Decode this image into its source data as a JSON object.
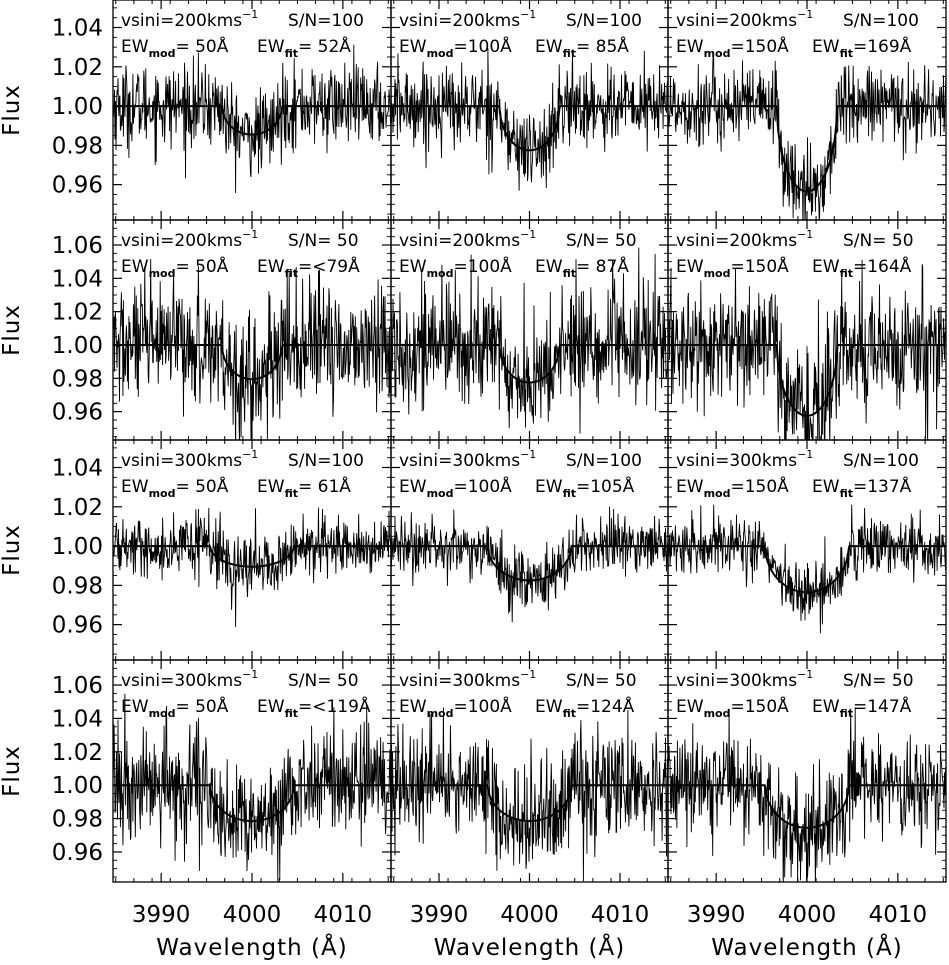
{
  "chart_data": {
    "type": "line",
    "rows": 4,
    "cols": 3,
    "xlabel": "Wavelength (Å)",
    "ylabel": "Flux",
    "xlim": [
      3984.7,
      4015.3
    ],
    "x_ticks": [
      3990,
      4000,
      4010
    ],
    "x_tick_labels": [
      "3990",
      "4000",
      "4010"
    ],
    "line_center": 4000,
    "panels": [
      {
        "vsini": "vsini=200kms",
        "sn": "S/N=100",
        "ew_mod_value": "= 50Å",
        "ew_fit_value": "= 52Å",
        "ylim": [
          0.942,
          1.054
        ],
        "yticks": [
          "1.04",
          "1.02",
          "1.00",
          "0.98",
          "0.96"
        ],
        "ytick_values": [
          1.04,
          1.02,
          1.0,
          0.98,
          0.96
        ],
        "model_depth": 0.0145,
        "half_width": 3.3,
        "noise_sigma": 0.0105
      },
      {
        "vsini": "vsini=200kms",
        "sn": "S/N=100",
        "ew_mod_value": "=100Å",
        "ew_fit_value": "= 85Å",
        "ylim": [
          0.942,
          1.054
        ],
        "yticks": [],
        "ytick_values": [],
        "model_depth": 0.0225,
        "half_width": 3.3,
        "noise_sigma": 0.0105
      },
      {
        "vsini": "vsini=200kms",
        "sn": "S/N=100",
        "ew_mod_value": "=150Å",
        "ew_fit_value": "=169Å",
        "ylim": [
          0.942,
          1.054
        ],
        "yticks": [],
        "ytick_values": [],
        "model_depth": 0.0435,
        "half_width": 3.3,
        "noise_sigma": 0.0105
      },
      {
        "vsini": "vsini=200kms",
        "sn": "S/N= 50",
        "ew_mod_value": "= 50Å",
        "ew_fit_value": "=<79Å",
        "ylim": [
          0.943,
          1.075
        ],
        "yticks": [
          "1.06",
          "1.04",
          "1.02",
          "1.00",
          "0.98",
          "0.96"
        ],
        "ytick_values": [
          1.06,
          1.04,
          1.02,
          1.0,
          0.98,
          0.96
        ],
        "model_depth": 0.0205,
        "half_width": 3.3,
        "noise_sigma": 0.0185
      },
      {
        "vsini": "vsini=200kms",
        "sn": "S/N= 50",
        "ew_mod_value": "=100Å",
        "ew_fit_value": "= 87Å",
        "ylim": [
          0.943,
          1.075
        ],
        "yticks": [],
        "ytick_values": [],
        "model_depth": 0.0225,
        "half_width": 3.3,
        "noise_sigma": 0.0185
      },
      {
        "vsini": "vsini=200kms",
        "sn": "S/N= 50",
        "ew_mod_value": "=150Å",
        "ew_fit_value": "=164Å",
        "ylim": [
          0.943,
          1.075
        ],
        "yticks": [],
        "ytick_values": [],
        "model_depth": 0.0425,
        "half_width": 3.3,
        "noise_sigma": 0.0185
      },
      {
        "vsini": "vsini=300kms",
        "sn": "S/N=100",
        "ew_mod_value": "= 50Å",
        "ew_fit_value": "= 61Å",
        "ylim": [
          0.942,
          1.054
        ],
        "yticks": [
          "1.04",
          "1.02",
          "1.00",
          "0.98",
          "0.96"
        ],
        "ytick_values": [
          1.04,
          1.02,
          1.0,
          0.98,
          0.96
        ],
        "model_depth": 0.0105,
        "half_width": 4.6,
        "noise_sigma": 0.0075
      },
      {
        "vsini": "vsini=300kms",
        "sn": "S/N=100",
        "ew_mod_value": "=100Å",
        "ew_fit_value": "=105Å",
        "ylim": [
          0.942,
          1.054
        ],
        "yticks": [],
        "ytick_values": [],
        "model_depth": 0.0175,
        "half_width": 4.6,
        "noise_sigma": 0.0075
      },
      {
        "vsini": "vsini=300kms",
        "sn": "S/N=100",
        "ew_mod_value": "=150Å",
        "ew_fit_value": "=137Å",
        "ylim": [
          0.942,
          1.054
        ],
        "yticks": [],
        "ytick_values": [],
        "model_depth": 0.0235,
        "half_width": 4.6,
        "noise_sigma": 0.0075
      },
      {
        "vsini": "vsini=300kms",
        "sn": "S/N= 50",
        "ew_mod_value": "= 50Å",
        "ew_fit_value": "=<119Å",
        "ylim": [
          0.942,
          1.075
        ],
        "yticks": [
          "1.06",
          "1.04",
          "1.02",
          "1.00",
          "0.98",
          "0.96"
        ],
        "ytick_values": [
          1.06,
          1.04,
          1.02,
          1.0,
          0.98,
          0.96
        ],
        "model_depth": 0.0215,
        "half_width": 4.6,
        "noise_sigma": 0.0165
      },
      {
        "vsini": "vsini=300kms",
        "sn": "S/N= 50",
        "ew_mod_value": "=100Å",
        "ew_fit_value": "=124Å",
        "ylim": [
          0.942,
          1.075
        ],
        "yticks": [],
        "ytick_values": [],
        "model_depth": 0.0215,
        "half_width": 4.6,
        "noise_sigma": 0.0165
      },
      {
        "vsini": "vsini=300kms",
        "sn": "S/N= 50",
        "ew_mod_value": "=150Å",
        "ew_fit_value": "=147Å",
        "ylim": [
          0.942,
          1.075
        ],
        "yticks": [],
        "ytick_values": [],
        "model_depth": 0.0255,
        "half_width": 4.6,
        "noise_sigma": 0.0165
      }
    ]
  }
}
